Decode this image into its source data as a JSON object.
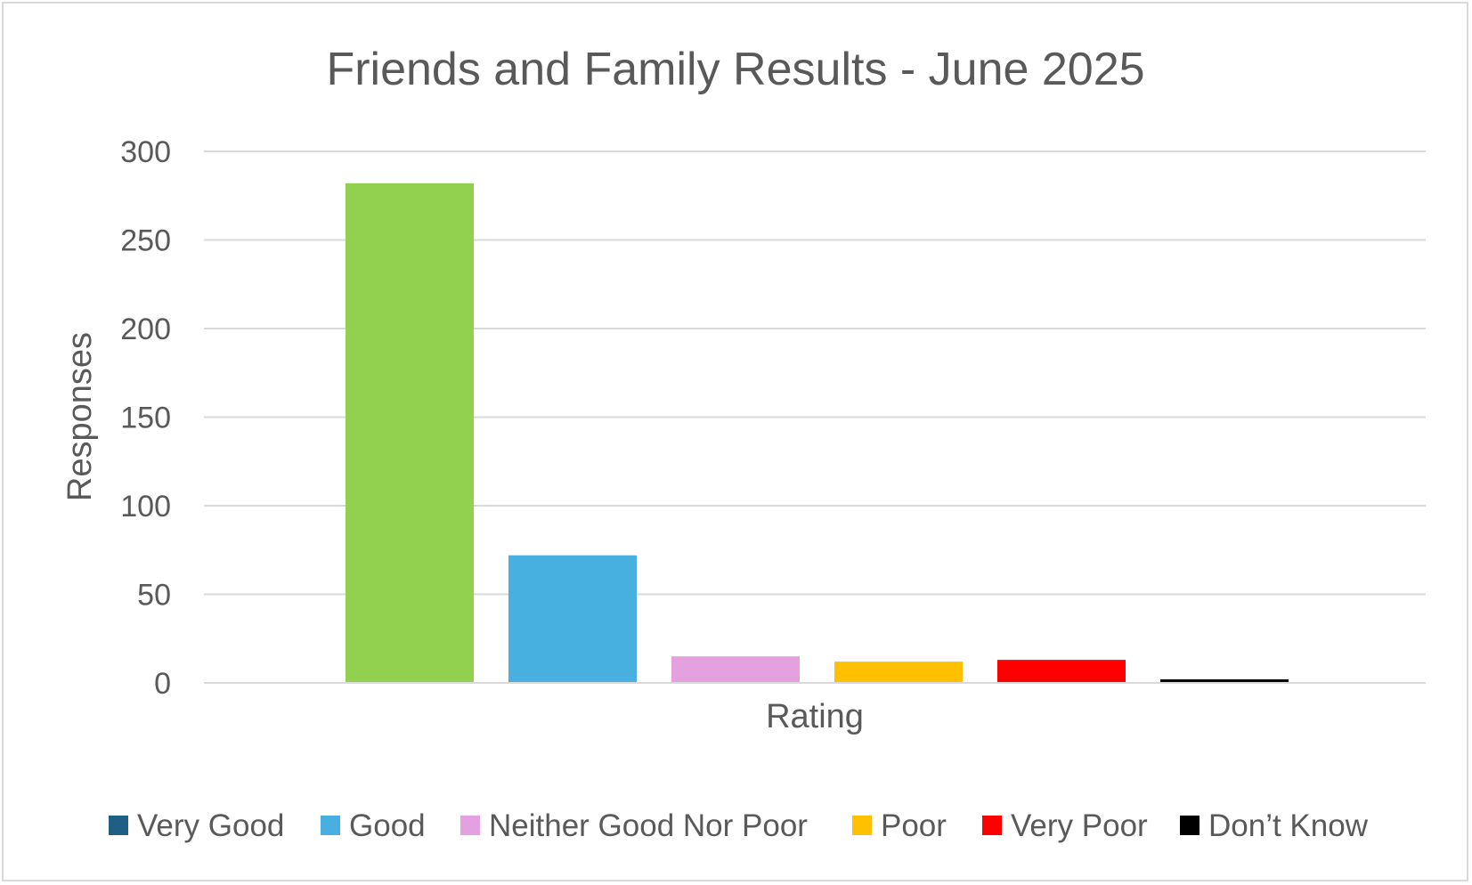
{
  "chart_data": {
    "type": "bar",
    "title": "Friends and Family Results - June 2025",
    "xlabel": "Rating",
    "ylabel": "Responses",
    "ylim": [
      0,
      300
    ],
    "yticks": [
      "0",
      "50",
      "100",
      "150",
      "200",
      "250",
      "300"
    ],
    "grid": true,
    "legend_position": "bottom",
    "series": [
      {
        "name": "Very Good",
        "value": 282,
        "color": "#1f5f86"
      },
      {
        "name": "Good",
        "value": 72,
        "color": "#47b0e0"
      },
      {
        "name": "Neither Good Nor Poor",
        "value": 15,
        "color": "#e4a1e0"
      },
      {
        "name": "Poor",
        "value": 12,
        "color": "#ffc000"
      },
      {
        "name": "Very Poor",
        "value": 13,
        "color": "#ff0000"
      },
      {
        "name": "Don’t Know",
        "value": 2,
        "color": "#000000"
      }
    ],
    "bar_colors": [
      "#92d050",
      "#47b0e0",
      "#e4a1e0",
      "#ffc000",
      "#ff0000",
      "#000000"
    ]
  }
}
